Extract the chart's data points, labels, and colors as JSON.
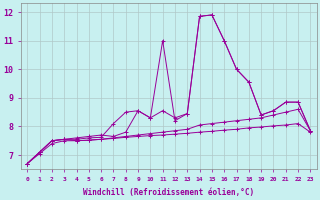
{
  "xlabel": "Windchill (Refroidissement éolien,°C)",
  "background_color": "#c8f0f0",
  "grid_color": "#b0c8c8",
  "line_color": "#990099",
  "x_ticks": [
    0,
    1,
    2,
    3,
    4,
    5,
    6,
    7,
    8,
    9,
    10,
    11,
    12,
    13,
    14,
    15,
    16,
    17,
    18,
    19,
    20,
    21,
    22,
    23
  ],
  "ylim": [
    6.5,
    12.3
  ],
  "y_ticks": [
    7,
    8,
    9,
    10,
    11,
    12
  ],
  "series": [
    [
      6.7,
      7.1,
      7.5,
      7.55,
      7.6,
      7.65,
      7.7,
      7.65,
      7.8,
      8.55,
      8.3,
      8.55,
      8.3,
      8.45,
      11.85,
      11.9,
      11.0,
      10.0,
      9.55,
      8.4,
      8.55,
      8.85,
      8.85,
      7.85
    ],
    [
      6.7,
      7.1,
      7.5,
      7.55,
      7.55,
      7.6,
      7.62,
      8.1,
      8.5,
      8.55,
      8.3,
      11.0,
      8.2,
      8.45,
      11.85,
      11.9,
      11.0,
      10.0,
      9.55,
      8.4,
      8.55,
      8.85,
      8.85,
      7.85
    ],
    [
      6.7,
      7.1,
      7.5,
      7.55,
      7.5,
      7.52,
      7.55,
      7.6,
      7.65,
      7.7,
      7.75,
      7.8,
      7.85,
      7.9,
      8.05,
      8.1,
      8.15,
      8.2,
      8.25,
      8.3,
      8.4,
      8.5,
      8.6,
      7.85
    ],
    [
      6.7,
      7.05,
      7.4,
      7.5,
      7.5,
      7.52,
      7.55,
      7.58,
      7.62,
      7.65,
      7.68,
      7.7,
      7.73,
      7.76,
      7.8,
      7.83,
      7.87,
      7.9,
      7.95,
      7.98,
      8.02,
      8.05,
      8.1,
      7.8
    ]
  ]
}
